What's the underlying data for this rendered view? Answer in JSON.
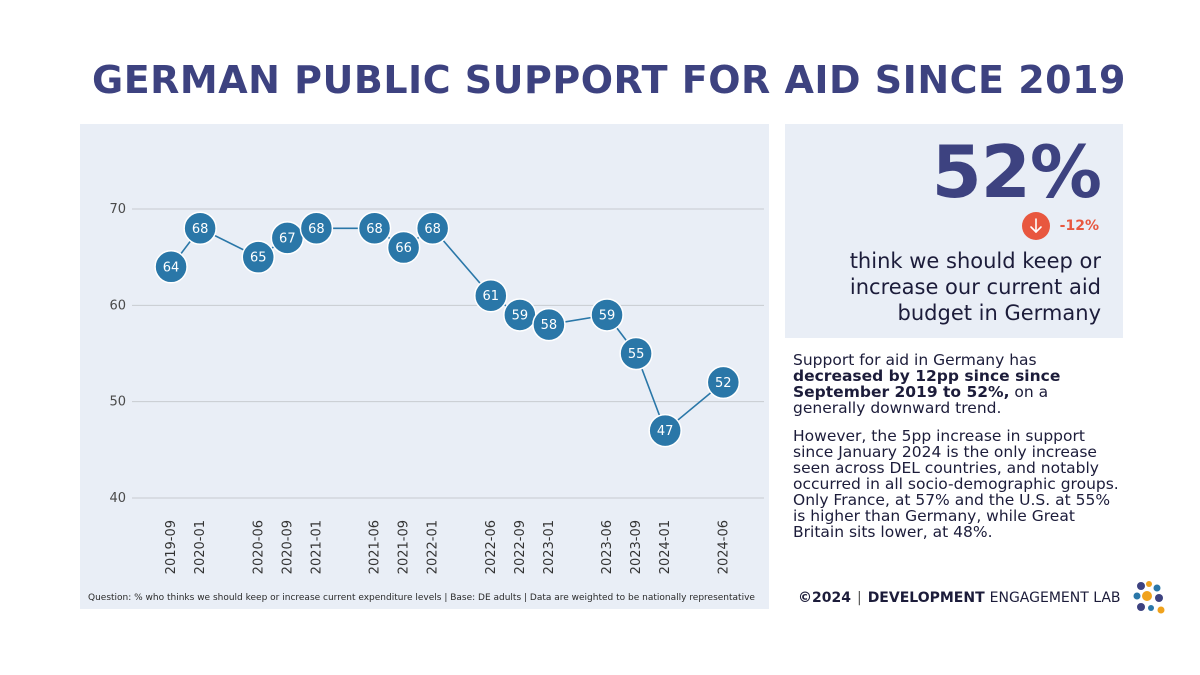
{
  "title": "GERMAN PUBLIC SUPPORT FOR AID SINCE 2019",
  "chart_data": {
    "type": "line",
    "categories": [
      "2019-09",
      "2020-01",
      "2020-06",
      "2020-09",
      "2021-01",
      "2021-06",
      "2021-09",
      "2022-01",
      "2022-06",
      "2022-09",
      "2023-01",
      "2023-06",
      "2023-09",
      "2024-01",
      "2024-06"
    ],
    "x_positions": [
      2019.75,
      2020.0,
      2020.5,
      2020.75,
      2021.0,
      2021.5,
      2021.75,
      2022.0,
      2022.5,
      2022.75,
      2023.0,
      2023.5,
      2023.75,
      2024.0,
      2024.5
    ],
    "values": [
      64,
      68,
      65,
      67,
      68,
      68,
      66,
      68,
      61,
      59,
      58,
      59,
      55,
      47,
      52
    ],
    "y_ticks": [
      40,
      50,
      60,
      70
    ],
    "ylim": [
      40,
      70
    ],
    "xlabel": "",
    "ylabel": "",
    "colors": {
      "line": "#2a77a8",
      "marker": "#2a77a8",
      "grid": "#c8cbd0"
    }
  },
  "footnote": "Question: % who thinks we should keep or increase current expenditure levels | Base: DE adults | Data are weighted to be nationally representative",
  "stat": {
    "value": "52%",
    "change": "-12%",
    "caption": "think we should keep or increase our current aid budget in Germany",
    "colors": {
      "value": "#3d4280",
      "change": "#e8573f"
    }
  },
  "summary": {
    "p1_start": "Support for aid in Germany has ",
    "p1_bold": "decreased by 12pp since since September 2019 to 52%,",
    "p1_end": " on a generally downward trend.",
    "p2": "However, the 5pp increase in support since January 2024 is the only increase seen across DEL countries, and notably occurred in all socio-demographic groups. Only France, at 57% and the U.S. at 55% is higher than Germany, while Great Britain sits lower, at 48%."
  },
  "footer": {
    "copyright": "©2024",
    "separator": "|",
    "org_bold": "DEVELOPMENT",
    "org_rest": "ENGAGEMENT LAB"
  },
  "logo": {
    "colors": [
      "#3d4280",
      "#f0a21c",
      "#2a77a8"
    ]
  }
}
